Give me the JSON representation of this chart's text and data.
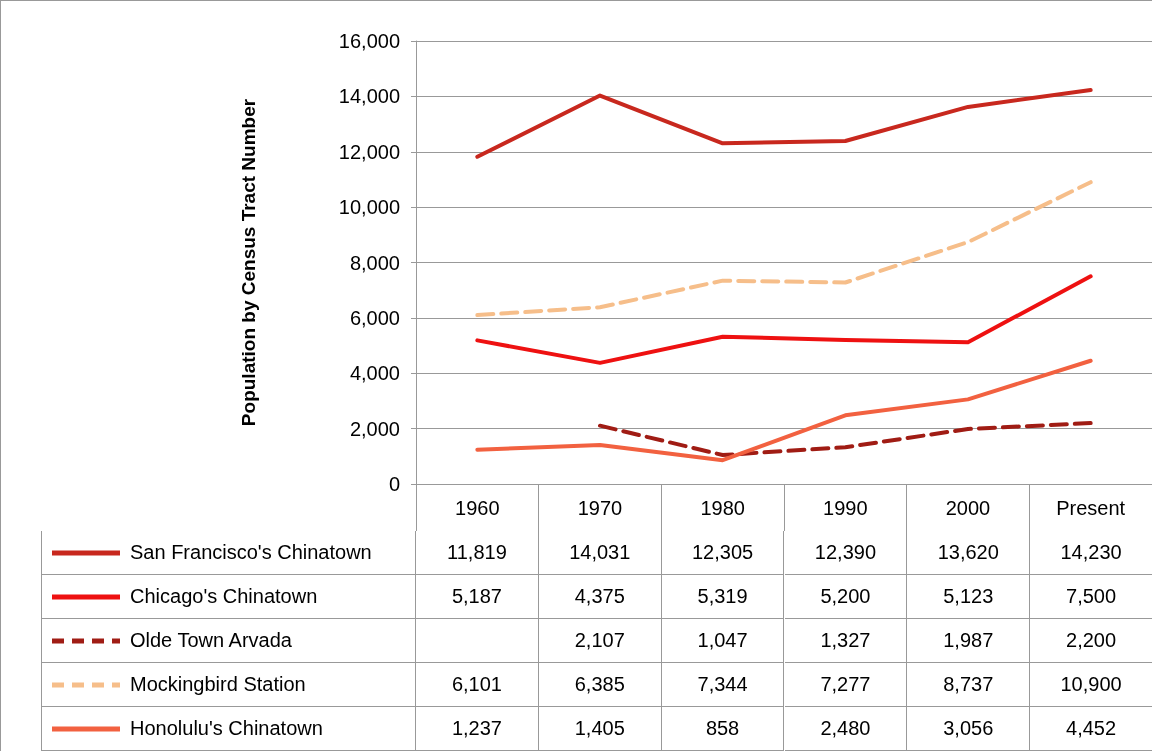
{
  "chart_data": {
    "type": "line",
    "ylabel": "Population by Census Tract Number",
    "categories": [
      "1960",
      "1970",
      "1980",
      "1990",
      "2000",
      "Present"
    ],
    "ylim": [
      0,
      16000
    ],
    "yticks": [
      {
        "value": 0,
        "label": "0"
      },
      {
        "value": 2000,
        "label": "2,000"
      },
      {
        "value": 4000,
        "label": "4,000"
      },
      {
        "value": 6000,
        "label": "6,000"
      },
      {
        "value": 8000,
        "label": "8,000"
      },
      {
        "value": 10000,
        "label": "10,000"
      },
      {
        "value": 12000,
        "label": "12,000"
      },
      {
        "value": 14000,
        "label": "14,000"
      },
      {
        "value": 16000,
        "label": "16,000"
      }
    ],
    "grid": "y",
    "legend": "bottom",
    "series": [
      {
        "name": "San Francisco's Chinatown",
        "color": "#c8281e",
        "line_style": "solid",
        "values": [
          11819,
          14031,
          12305,
          12390,
          13620,
          14230
        ],
        "value_labels": [
          "11,819",
          "14,031",
          "12,305",
          "12,390",
          "13,620",
          "14,230"
        ]
      },
      {
        "name": "Chicago's Chinatown",
        "color": "#ee1111",
        "line_style": "solid",
        "values": [
          5187,
          4375,
          5319,
          5200,
          5123,
          7500
        ],
        "value_labels": [
          "5,187",
          "4,375",
          "5,319",
          "5,200",
          "5,123",
          "7,500"
        ]
      },
      {
        "name": "Olde Town Arvada",
        "color": "#a01c14",
        "line_style": "dashed",
        "values": [
          null,
          2107,
          1047,
          1327,
          1987,
          2200
        ],
        "value_labels": [
          null,
          "2,107",
          "1,047",
          "1,327",
          "1,987",
          "2,200"
        ]
      },
      {
        "name": "Mockingbird Station",
        "color": "#f6be8a",
        "line_style": "dashed",
        "values": [
          6101,
          6385,
          7344,
          7277,
          8737,
          10900
        ],
        "value_labels": [
          "6,101",
          "6,385",
          "7,344",
          "7,277",
          "8,737",
          "10,900"
        ]
      },
      {
        "name": "Honolulu's Chinatown",
        "color": "#f26140",
        "line_style": "solid",
        "values": [
          1237,
          1405,
          858,
          2480,
          3056,
          4452
        ],
        "value_labels": [
          "1,237",
          "1,405",
          "858",
          "2,480",
          "3,056",
          "4,452"
        ]
      }
    ]
  }
}
